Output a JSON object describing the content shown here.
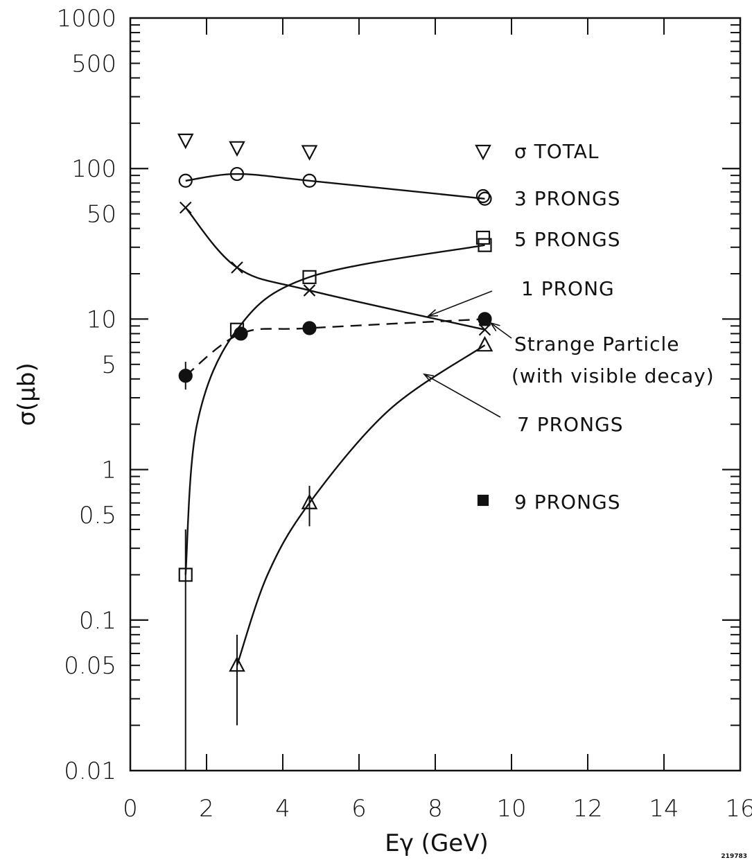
{
  "chart_data": {
    "type": "scatter",
    "xlabel": "Eγ (GeV)",
    "ylabel": "σ(μb)",
    "xlim": [
      0,
      16
    ],
    "ylim": [
      0.01,
      1000
    ],
    "y_scale": "log",
    "grid": false,
    "x_ticks": [
      0,
      2,
      4,
      6,
      8,
      10,
      12,
      14,
      16
    ],
    "x_tick_labels": [
      "0",
      "2",
      "4",
      "6",
      "8",
      "10",
      "12",
      "14",
      "16"
    ],
    "y_ticks": [
      0.01,
      0.05,
      0.1,
      0.5,
      1,
      5,
      10,
      50,
      100,
      500,
      1000
    ],
    "y_tick_labels": [
      "0.01",
      "0.05",
      "0.1",
      "0.5",
      "1",
      "5",
      "10",
      "50",
      "100",
      "500",
      "1000"
    ],
    "series": [
      {
        "key": "total",
        "name": "σ TOTAL",
        "marker": "triangle-down",
        "curve": "none",
        "points": [
          [
            1.45,
            155
          ],
          [
            2.8,
            138
          ],
          [
            4.7,
            130
          ]
        ]
      },
      {
        "key": "p3",
        "name": "3 PRONGS",
        "marker": "circle",
        "curve": "solid",
        "points": [
          [
            1.45,
            83
          ],
          [
            2.8,
            92
          ],
          [
            4.7,
            83
          ],
          [
            9.3,
            63
          ]
        ]
      },
      {
        "key": "p5",
        "name": "5 PRONGS",
        "marker": "square",
        "curve": "solid",
        "points": [
          [
            1.45,
            0.2
          ],
          [
            2.8,
            8.5
          ],
          [
            4.7,
            19
          ],
          [
            9.3,
            31
          ]
        ],
        "errors": [
          [
            0.01,
            0.4
          ]
        ]
      },
      {
        "key": "p1",
        "name": "1 PRONG",
        "marker": "x",
        "curve": "solid",
        "points": [
          [
            1.45,
            55
          ],
          [
            2.8,
            22
          ],
          [
            4.7,
            15.5
          ],
          [
            9.3,
            8.5
          ]
        ]
      },
      {
        "key": "strange",
        "name": "Strange Particle",
        "name_line2": "(with visible decay)",
        "marker": "filled-circle",
        "curve": "dashed",
        "points": [
          [
            1.45,
            4.2
          ],
          [
            2.9,
            8
          ],
          [
            4.7,
            8.7
          ],
          [
            9.3,
            10
          ]
        ],
        "errors": [
          [
            3.4,
            5.2
          ]
        ]
      },
      {
        "key": "p7",
        "name": "7 PRONGS",
        "marker": "triangle-up",
        "curve": "solid",
        "points": [
          [
            2.8,
            0.05
          ],
          [
            4.7,
            0.6
          ],
          [
            9.3,
            6.7
          ]
        ],
        "errors": [
          [
            0.02,
            0.08
          ],
          [
            0.42,
            0.78
          ]
        ]
      },
      {
        "key": "p9",
        "name": "9 PRONGS",
        "marker": "filled-square",
        "curve": "none",
        "points": [
          [
            9.3,
            9.8
          ]
        ]
      }
    ]
  },
  "footer_code": "219783"
}
